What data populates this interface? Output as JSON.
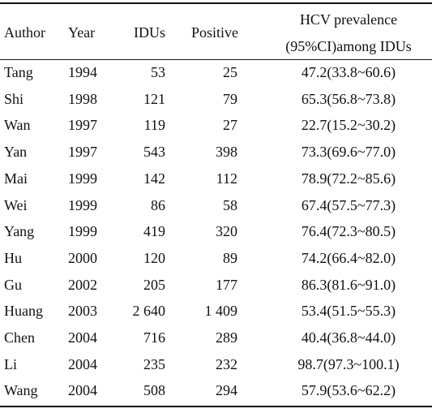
{
  "table": {
    "headers": [
      "Author",
      "Year",
      "IDUs",
      "Positive",
      "HCV prevalence",
      "(95%CI)among IDUs"
    ],
    "rows": [
      [
        "Tang",
        "1994",
        "53",
        "25",
        "47.2(33.8~60.6)"
      ],
      [
        "Shi",
        "1998",
        "121",
        "79",
        "65.3(56.8~73.8)"
      ],
      [
        "Wan",
        "1997",
        "119",
        "27",
        "22.7(15.2~30.2)"
      ],
      [
        "Yan",
        "1997",
        "543",
        "398",
        "73.3(69.6~77.0)"
      ],
      [
        "Mai",
        "1999",
        "142",
        "112",
        "78.9(72.2~85.6)"
      ],
      [
        "Wei",
        "1999",
        "86",
        "58",
        "67.4(57.5~77.3)"
      ],
      [
        "Yang",
        "1999",
        "419",
        "320",
        "76.4(72.3~80.5)"
      ],
      [
        "Hu",
        "2000",
        "120",
        "89",
        "74.2(66.4~82.0)"
      ],
      [
        "Gu",
        "2002",
        "205",
        "177",
        "86.3(81.6~91.0)"
      ],
      [
        "Huang",
        "2003",
        "2 640",
        "1 409",
        "53.4(51.5~55.3)"
      ],
      [
        "Chen",
        "2004",
        "716",
        "289",
        "40.4(36.8~44.0)"
      ],
      [
        "Li",
        "2004",
        "235",
        "232",
        "98.7(97.3~100.1)"
      ],
      [
        "Wang",
        "2004",
        "508",
        "294",
        "57.9(53.6~62.2)"
      ]
    ]
  }
}
